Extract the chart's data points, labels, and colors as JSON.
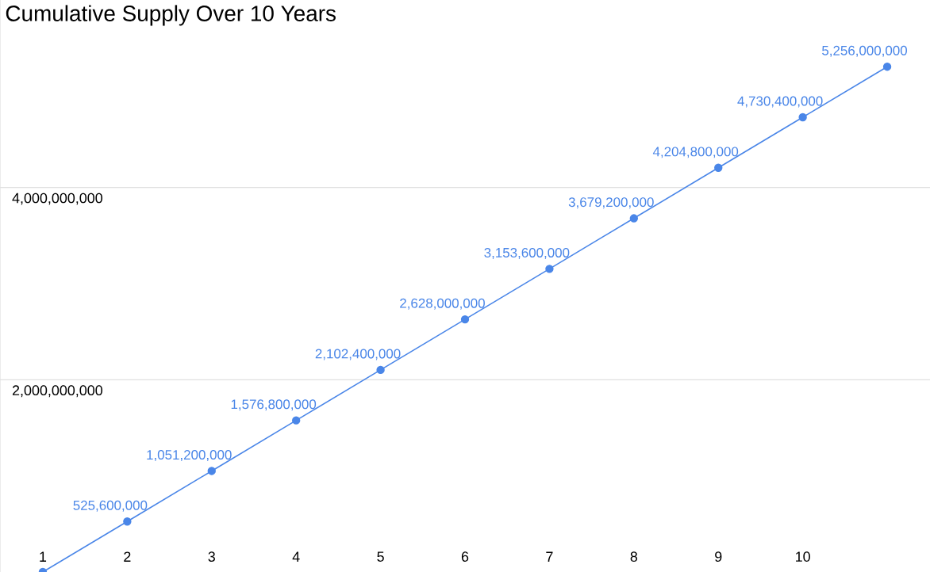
{
  "chart_data": {
    "type": "line",
    "title": "Cumulative Supply Over 10 Years",
    "categories": [
      "1",
      "2",
      "3",
      "4",
      "5",
      "6",
      "7",
      "8",
      "9",
      "10",
      null
    ],
    "series": [
      {
        "color": "#4a86e8",
        "values": [
          0,
          525600000,
          1051200000,
          1576800000,
          2102400000,
          2628000000,
          3153600000,
          3679200000,
          4204800000,
          4730400000,
          5256000000
        ],
        "value_labels": [
          null,
          "525,600,000",
          "1,051,200,000",
          "1,576,800,000",
          "2,102,400,000",
          "2,628,000,000",
          "3,153,600,000",
          "3,679,200,000",
          "4,204,800,000",
          "4,730,400,000",
          "5,256,000,000"
        ]
      }
    ],
    "yticks": [
      {
        "value": 2000000000,
        "label": "2,000,000,000"
      },
      {
        "value": 4000000000,
        "label": "4,000,000,000"
      }
    ],
    "ylim": [
      0,
      5950000000
    ],
    "grid": "y",
    "marker": "circle",
    "line_style": "solid"
  }
}
